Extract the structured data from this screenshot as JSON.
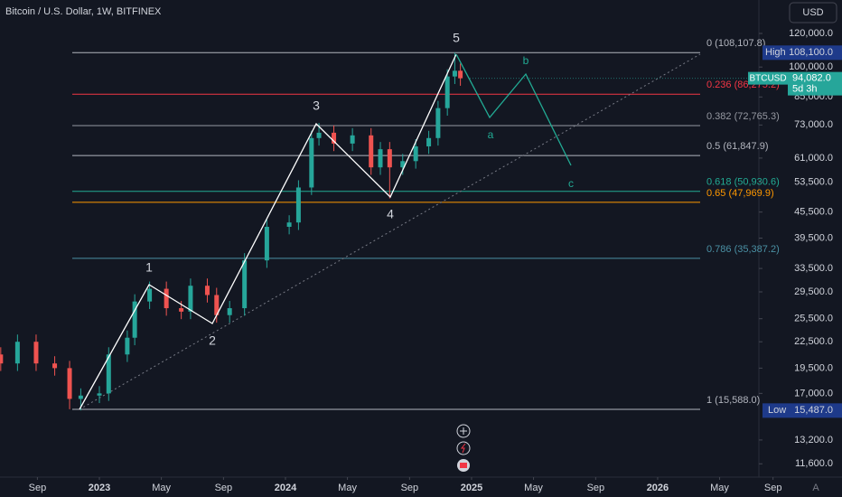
{
  "chart_data": {
    "type": "candlestick",
    "title": "Bitcoin / U.S. Dollar, 1W, BITFINEX",
    "currency": "USD",
    "symbol": "BTCUSD",
    "last_price": {
      "value": 94082,
      "label": "94,082.0"
    },
    "countdown": "5d 3h",
    "period_high": {
      "name": "High",
      "value": 108100,
      "label": "108,100.0"
    },
    "period_low": {
      "name": "Low",
      "value": 15487,
      "label": "15,487.0"
    },
    "up_color": "#26a69a",
    "down_color": "#ef5350",
    "log": true,
    "ylim": [
      10790,
      143900
    ],
    "yticks": [
      {
        "value": 120000,
        "label": "120,000.0"
      },
      {
        "value": 100000,
        "label": "100,000.0"
      },
      {
        "value": 85000,
        "label": "85,000.0"
      },
      {
        "value": 73000,
        "label": "73,000.0"
      },
      {
        "value": 61000,
        "label": "61,000.0"
      },
      {
        "value": 53500,
        "label": "53,500.0"
      },
      {
        "value": 45500,
        "label": "45,500.0"
      },
      {
        "value": 39500,
        "label": "39,500.0"
      },
      {
        "value": 33500,
        "label": "33,500.0"
      },
      {
        "value": 29500,
        "label": "29,500.0"
      },
      {
        "value": 25500,
        "label": "25,500.0"
      },
      {
        "value": 22500,
        "label": "22,500.0"
      },
      {
        "value": 19500,
        "label": "19,500.0"
      },
      {
        "value": 17000,
        "label": "17,000.0"
      },
      {
        "value": 13200,
        "label": "13,200.0"
      },
      {
        "value": 11600,
        "label": "11,600.0"
      }
    ],
    "xlim": [
      2022.466,
      2026.544
    ],
    "xticks": [
      {
        "value": 2022.667,
        "label": "Sep"
      },
      2023,
      {
        "value": 2023.333,
        "label": "May"
      },
      {
        "value": 2023.667,
        "label": "Sep"
      },
      2024,
      {
        "value": 2024.333,
        "label": "May"
      },
      {
        "value": 2024.667,
        "label": "Sep"
      },
      2025,
      {
        "value": 2025.333,
        "label": "May"
      },
      {
        "value": 2025.667,
        "label": "Sep"
      },
      2026,
      {
        "value": 2026.333,
        "label": "May"
      },
      {
        "value": 2026.62,
        "label": "Sep"
      }
    ],
    "x": [
      2022.47,
      2022.56,
      2022.66,
      2022.76,
      2022.84,
      2022.9,
      2023.0,
      2023.05,
      2023.15,
      2023.19,
      2023.27,
      2023.36,
      2023.44,
      2023.49,
      2023.58,
      2023.63,
      2023.7,
      2023.78,
      2023.9,
      2024.02,
      2024.07,
      2024.14,
      2024.18,
      2024.26,
      2024.36,
      2024.46,
      2024.51,
      2024.56,
      2024.63,
      2024.7,
      2024.77,
      2024.82,
      2024.87,
      2024.91,
      2024.94
    ],
    "open": [
      21000,
      20000,
      22500,
      20000,
      19500,
      16500,
      16800,
      17000,
      21000,
      23000,
      28000,
      30000,
      27000,
      26500,
      30500,
      29000,
      26000,
      27000,
      35000,
      42000,
      43000,
      52000,
      68000,
      70000,
      66000,
      69000,
      58000,
      64000,
      58000,
      60000,
      65000,
      68000,
      80000,
      95000,
      98000
    ],
    "high": [
      21840,
      23400,
      23400,
      20800,
      20280,
      17470,
      17680,
      21840,
      23920,
      29120,
      31200,
      31200,
      28080,
      31720,
      31720,
      30160,
      28080,
      36400,
      43680,
      44720,
      54080,
      70720,
      73800,
      72800,
      71760,
      71760,
      66560,
      66560,
      62400,
      67600,
      70720,
      83200,
      98800,
      108100,
      101920
    ],
    "low": [
      19200,
      19200,
      19200,
      18720,
      15600,
      15500,
      16130,
      16320,
      20160,
      22080,
      26880,
      25920,
      25440,
      25440,
      27840,
      24960,
      24960,
      25920,
      33600,
      40320,
      41280,
      49920,
      65280,
      63360,
      63360,
      55680,
      55680,
      49000,
      55680,
      57600,
      62400,
      65280,
      76800,
      91200,
      90320
    ],
    "close": [
      20000,
      22500,
      20000,
      19500,
      16500,
      16800,
      17000,
      21000,
      23000,
      28000,
      30000,
      27000,
      26500,
      30500,
      29000,
      26000,
      27000,
      35000,
      42000,
      43000,
      52000,
      68000,
      70000,
      66000,
      69000,
      58000,
      64000,
      58000,
      60000,
      65000,
      68000,
      80000,
      95000,
      98000,
      94082
    ],
    "fib_levels": [
      {
        "value": 108107.8,
        "label": "0 (108,107.8)",
        "color": "#b2b5be"
      },
      {
        "value": 86275.2,
        "label": "0.236 (86,275.2)",
        "color": "#f23645"
      },
      {
        "value": 72765.3,
        "label": "0.382 (72,765.3)",
        "color": "#9598a1"
      },
      {
        "value": 61847.9,
        "label": "0.5 (61,847.9)",
        "color": "#b2b5be"
      },
      {
        "value": 50930.6,
        "label": "0.618 (50,930.6)",
        "color": "#22ab94"
      },
      {
        "value": 47969.9,
        "label": "0.65 (47,969.9)",
        "color": "#ff9800"
      },
      {
        "value": 35387.2,
        "label": "0.786 (35,387.2)",
        "color": "#4a90a4"
      },
      {
        "value": 15588.0,
        "label": "1 (15,588.0)",
        "color": "#b2b5be"
      }
    ],
    "waves": [
      "1",
      "2",
      "3",
      "4",
      "5",
      "a",
      "b",
      "c"
    ]
  }
}
